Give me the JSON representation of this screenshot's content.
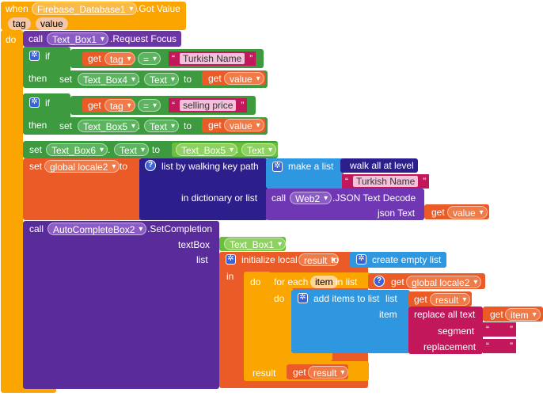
{
  "event": {
    "when": "when",
    "component": "Firebase_Database1",
    "event_name": ".Got Value",
    "params": [
      "tag",
      "value"
    ],
    "do": "do"
  },
  "kw": {
    "call": "call",
    "set": "set",
    "get": "get",
    "if": "if",
    "then": "then",
    "to": "to",
    "eq": "=",
    "in": "in",
    "do": "do",
    "item": "item",
    "list": "list",
    "result": "result",
    "dot": "."
  },
  "call_focus": {
    "component": "Text_Box1",
    "method": ".Request Focus"
  },
  "if1": {
    "var": "tag",
    "string": "Turkish Name",
    "set_component": "Text_Box4",
    "set_prop": "Text",
    "value_var": "value"
  },
  "if2": {
    "var": "tag",
    "string": "selling price",
    "set_component": "Text_Box5",
    "set_prop": "Text",
    "value_var": "value"
  },
  "set6": {
    "component": "Text_Box6",
    "prop": "Text",
    "src_component": "Text_Box5",
    "src_prop": "Text"
  },
  "global_set": {
    "label": "set",
    "var": "global locale2",
    "to": "to",
    "walk_label": "list by walking key path",
    "make_list": "make a list",
    "walk_all": "walk all at level",
    "string": "Turkish Name",
    "in_dict": "in dictionary or list",
    "call": "call",
    "web": "Web2",
    "json_method": ".JSON Text Decode",
    "json_text": "json Text",
    "value_var": "value"
  },
  "autocomplete": {
    "component": "AutoCompleteBox2",
    "method": ".SetCompletion",
    "textbox_label": "textBox",
    "textbox_value": "Text_Box1",
    "list_label": "list",
    "init_local": "initialize local",
    "local_var": "result",
    "create_empty": "create empty list",
    "for_each": "for each",
    "item_var": "item",
    "in_list": "in list",
    "global_var": "global locale2",
    "add_items": "add items to list",
    "replace_all": "replace all text",
    "segment": "segment",
    "replacement": "replacement",
    "seg_value": "",
    "rep_value": ""
  },
  "colors": {
    "event": "#fba500",
    "component_call": "#6c35a6",
    "control": "#3d9a3f",
    "variable": "#ea5b27",
    "text": "#c2185b",
    "list": "#2f97e0"
  }
}
